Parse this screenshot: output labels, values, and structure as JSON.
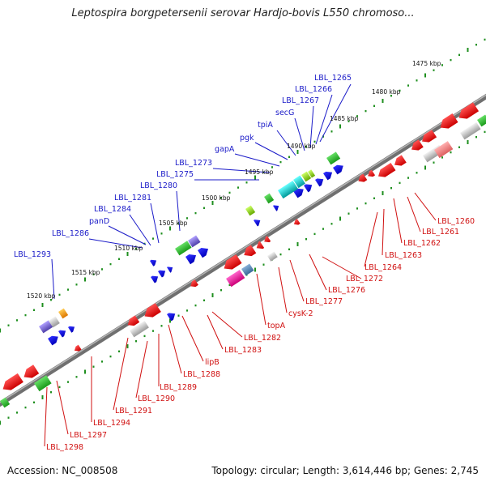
{
  "title": "Leptospira borgpetersenii serovar Hardjo-bovis L550 chromoso...",
  "footer": {
    "accession": "Accession: NC_008508",
    "summary": "Topology: circular; Length: 3,614,446 bp; Genes: 2,745"
  },
  "colors": {
    "forward_strand": "#0000ee",
    "reverse_strand": "#ee0000",
    "axis": "#808080",
    "ticks": "#1f8f1f",
    "top_label": "#1a1ac8",
    "bottom_label": "#d01010"
  },
  "kbp_labels": [
    "1475 kbp",
    "1480 kbp",
    "1485 kbp",
    "1490 kbp",
    "1495 kbp",
    "1500 kbp",
    "1505 kbp",
    "1510 kbp",
    "1515 kbp",
    "1520 kbp"
  ],
  "top_genes": [
    "LBL_1265",
    "LBL_1266",
    "LBL_1267",
    "secG",
    "tpiA",
    "pgk",
    "gapA",
    "LBL_1273",
    "LBL_1275",
    "LBL_1280",
    "LBL_1281",
    "LBL_1284",
    "panD",
    "LBL_1286",
    "LBL_1293"
  ],
  "bottom_genes": [
    "LBL_1260",
    "LBL_1261",
    "LBL_1262",
    "LBL_1263",
    "LBL_1264",
    "LBL_1272",
    "LBL_1276",
    "LBL_1277",
    "cysK-2",
    "topA",
    "LBL_1282",
    "LBL_1283",
    "lipB",
    "LBL_1288",
    "LBL_1289",
    "LBL_1290",
    "LBL_1291",
    "LBL_1294",
    "LBL_1297",
    "LBL_1298"
  ]
}
